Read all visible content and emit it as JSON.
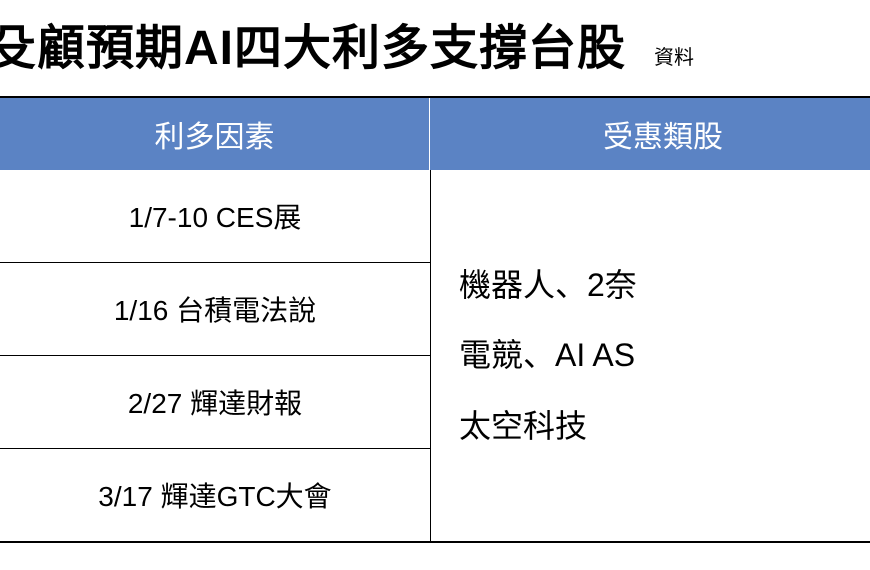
{
  "title": "殳顧預期AI四大利多支撐台股",
  "source_label": "資料",
  "table": {
    "type": "table",
    "header_bg": "#5b83c4",
    "header_fg": "#ffffff",
    "border_color": "#000000",
    "header_fontsize": 30,
    "cell_fontsize": 28,
    "right_fontsize": 32,
    "columns": [
      "利多因素",
      "受惠類股"
    ],
    "left_rows": [
      "1/7-10 CES展",
      "1/16 台積電法說",
      "2/27 輝達財報",
      "3/17 輝達GTC大會"
    ],
    "right_lines": [
      "機器人、2奈",
      "電競、AI AS",
      "太空科技"
    ]
  }
}
